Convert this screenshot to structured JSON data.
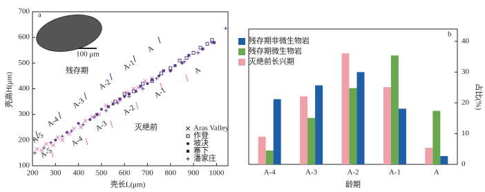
{
  "chart_data": [
    {
      "type": "scatter",
      "panel_label": "a",
      "scale_bar": "100 μm",
      "x_label": "壳长L(μm)",
      "y_label": "壳高H(μm)",
      "xlim": [
        200,
        1050
      ],
      "ylim": [
        100,
        700
      ],
      "xticks": [
        200,
        300,
        400,
        500,
        600,
        700,
        800,
        900,
        1000
      ],
      "yticks": [
        100,
        200,
        300,
        400,
        500,
        600,
        700
      ],
      "survival_labels": [
        "残存期",
        "A-5",
        "A-4",
        "A-3",
        "A-2",
        "A-1",
        "A"
      ],
      "pre_extinction_labels": [
        "灭绝前",
        "A-5",
        "A-4",
        "A-3",
        "A-2",
        "A-1",
        "A"
      ],
      "series": [
        {
          "name": "Aras Valley",
          "marker": "x",
          "color": "#e87ab8",
          "x": [
            220,
            240,
            260,
            290,
            310,
            330,
            360,
            380,
            410,
            430,
            460,
            490,
            520,
            550,
            580,
            610,
            640,
            660,
            690,
            720
          ],
          "y": [
            165,
            160,
            185,
            180,
            210,
            200,
            225,
            245,
            250,
            275,
            290,
            300,
            335,
            345,
            355,
            385,
            400,
            405,
            430,
            440
          ]
        },
        {
          "name": "作登",
          "marker": "square-open",
          "color": "#5a3d8a",
          "x": [
            560,
            600,
            640,
            680,
            720,
            760,
            800,
            840,
            870,
            900,
            930,
            960,
            980
          ],
          "y": [
            350,
            380,
            390,
            420,
            430,
            460,
            480,
            510,
            520,
            540,
            560,
            575,
            590
          ]
        },
        {
          "name": "坡决",
          "marker": "circle",
          "color": "#5a3d8a",
          "x": [
            300,
            350,
            400,
            450,
            500,
            550,
            600,
            650,
            700,
            750,
            800,
            850
          ],
          "y": [
            200,
            230,
            265,
            280,
            320,
            340,
            370,
            390,
            420,
            450,
            470,
            500
          ]
        },
        {
          "name": "寨下",
          "marker": "square",
          "color": "#5a3d8a",
          "x": [
            480,
            530,
            580,
            620,
            670,
            720,
            770,
            820,
            880,
            940,
            990
          ],
          "y": [
            300,
            330,
            360,
            380,
            410,
            435,
            470,
            490,
            530,
            555,
            580
          ]
        },
        {
          "name": "潘家庄",
          "marker": "plus",
          "color": "#5a3d8a",
          "x": [
            210,
            250,
            280,
            330,
            370,
            420,
            470,
            520,
            570,
            620,
            680,
            740,
            800,
            860,
            920,
            980,
            1040
          ],
          "y": [
            150,
            170,
            190,
            215,
            235,
            260,
            290,
            315,
            345,
            370,
            400,
            440,
            470,
            505,
            540,
            580,
            635
          ]
        }
      ]
    },
    {
      "type": "bar",
      "panel_label": "b",
      "x_label": "龄期",
      "y_label": "占比(%)",
      "categories": [
        "A-4",
        "A-3",
        "A-2",
        "A-1",
        "A"
      ],
      "ylim": [
        0,
        44
      ],
      "yticks": [
        0,
        10,
        20,
        30,
        40
      ],
      "series": [
        {
          "name": "灭绝前长兴期",
          "color": "#f0a0a8",
          "values": [
            9.0,
            22.1,
            36.1,
            25.1,
            5.4
          ]
        },
        {
          "name": "残存期微生物岩",
          "color": "#6aa84f",
          "values": [
            4.5,
            15.1,
            24.8,
            35.4,
            17.4
          ]
        },
        {
          "name": "残存期非微生物岩",
          "color": "#1f5fa8",
          "values": [
            21.2,
            25.7,
            30.0,
            18.1,
            2.7
          ]
        }
      ]
    }
  ]
}
